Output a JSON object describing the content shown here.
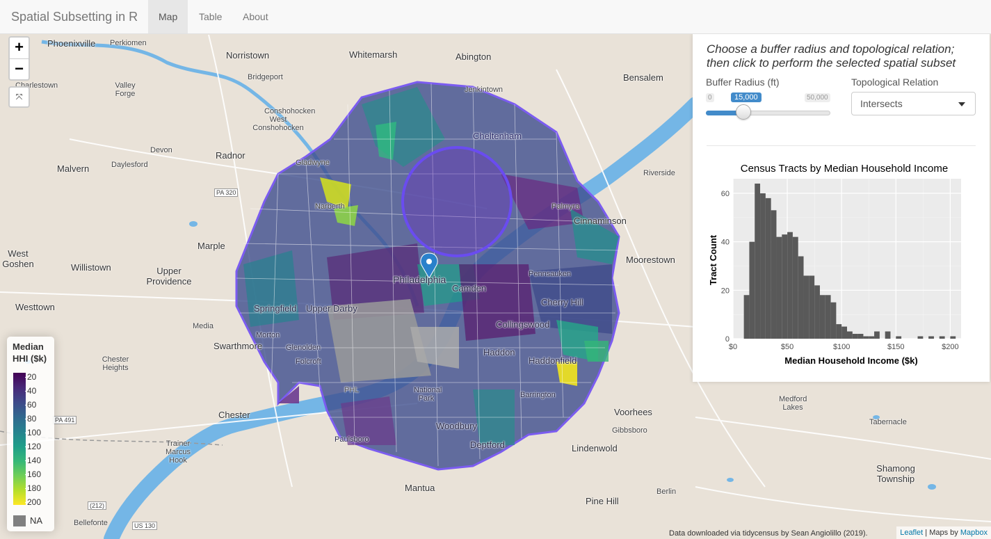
{
  "navbar": {
    "brand": "Spatial Subsetting in R",
    "tabs": [
      {
        "label": "Map",
        "active": true
      },
      {
        "label": "Table",
        "active": false
      },
      {
        "label": "About",
        "active": false
      }
    ]
  },
  "map": {
    "zoom_in": "+",
    "zoom_out": "−",
    "places": [
      {
        "name": "Phoenixville"
      },
      {
        "name": "Perkiomen"
      },
      {
        "name": "Norristown"
      },
      {
        "name": "Whitemarsh"
      },
      {
        "name": "Abington"
      },
      {
        "name": "Jenkintown"
      },
      {
        "name": "Bensalem"
      },
      {
        "name": "Charlestown"
      },
      {
        "name": "Valley Forge"
      },
      {
        "name": "Bridgeport"
      },
      {
        "name": "Conshohocken"
      },
      {
        "name": "West Conshohocken"
      },
      {
        "name": "Devon"
      },
      {
        "name": "Radnor"
      },
      {
        "name": "Gladwyne"
      },
      {
        "name": "Cheltenham"
      },
      {
        "name": "Malvern"
      },
      {
        "name": "Daylesford"
      },
      {
        "name": "PA 320"
      },
      {
        "name": "Riverside"
      },
      {
        "name": "Narberth"
      },
      {
        "name": "Palmyra"
      },
      {
        "name": "Cinnaminson"
      },
      {
        "name": "Marple"
      },
      {
        "name": "West Goshen"
      },
      {
        "name": "Willistown"
      },
      {
        "name": "Upper Providence"
      },
      {
        "name": "Moorestown"
      },
      {
        "name": "Philadelphia"
      },
      {
        "name": "Camden"
      },
      {
        "name": "Pennsauken"
      },
      {
        "name": "Westtown"
      },
      {
        "name": "Springfield"
      },
      {
        "name": "Upper Darby"
      },
      {
        "name": "Cherry Hill"
      },
      {
        "name": "Media"
      },
      {
        "name": "Collingswood"
      },
      {
        "name": "Swarthmore"
      },
      {
        "name": "Morton"
      },
      {
        "name": "Glenolden"
      },
      {
        "name": "Chester Heights"
      },
      {
        "name": "Folcroft"
      },
      {
        "name": "Haddon"
      },
      {
        "name": "Haddonfield"
      },
      {
        "name": "PHL"
      },
      {
        "name": "National Park"
      },
      {
        "name": "Barrington"
      },
      {
        "name": "Chester"
      },
      {
        "name": "PA 491"
      },
      {
        "name": "Voorhees"
      },
      {
        "name": "Medford Lakes"
      },
      {
        "name": "Tabernacle"
      },
      {
        "name": "Gibbsboro"
      },
      {
        "name": "Woodbury"
      },
      {
        "name": "Deptford"
      },
      {
        "name": "Paulsboro"
      },
      {
        "name": "Trainer Marcus Hook"
      },
      {
        "name": "Lindenwold"
      },
      {
        "name": "(212)"
      },
      {
        "name": "Mantua"
      },
      {
        "name": "Shamong Township"
      },
      {
        "name": "Pine Hill"
      },
      {
        "name": "Berlin"
      },
      {
        "name": "Bellefonte"
      },
      {
        "name": "US 130"
      }
    ]
  },
  "legend": {
    "title": "Median HHI ($k)",
    "ticks": [
      "20",
      "40",
      "60",
      "80",
      "100",
      "120",
      "140",
      "160",
      "180",
      "200"
    ],
    "na_label": "NA"
  },
  "panel": {
    "instructions": "Choose a buffer radius and topological relation; then click to perform the selected spatial subset",
    "buffer_label": "Buffer Radius (ft)",
    "slider_min": "0",
    "slider_max": "50,000",
    "slider_value": "15,000",
    "slider_fraction": 0.3,
    "relation_label": "Topological Relation",
    "relation_value": "Intersects"
  },
  "chart_data": {
    "type": "bar",
    "title": "Census Tracts by Median Household Income",
    "xlabel": "Median Household Income ($k)",
    "ylabel": "Tract Count",
    "xticks": [
      "$0",
      "$50",
      "$100",
      "$150",
      "$200"
    ],
    "yticks": [
      "0",
      "20",
      "40",
      "60"
    ],
    "xlim": [
      0,
      210
    ],
    "ylim": [
      0,
      66
    ],
    "bin_width": 5,
    "bin_starts": [
      10,
      15,
      20,
      25,
      30,
      35,
      40,
      45,
      50,
      55,
      60,
      65,
      70,
      75,
      80,
      85,
      90,
      95,
      100,
      105,
      110,
      115,
      120,
      125,
      130,
      135,
      140,
      145,
      150,
      155,
      160,
      165,
      170,
      175,
      180,
      185,
      190,
      195,
      200,
      205
    ],
    "values": [
      18,
      40,
      64,
      60,
      58,
      53,
      42,
      43,
      44,
      42,
      34,
      26,
      26,
      22,
      18,
      18,
      15,
      6,
      5,
      3,
      2,
      2,
      1,
      1,
      3,
      0,
      3,
      0,
      1,
      0,
      0,
      0,
      1,
      0,
      1,
      0,
      1,
      0,
      1,
      0
    ]
  },
  "attribution": {
    "data_source": "Data downloaded via tidycensus by Sean Angiolillo (2019).",
    "leaflet": "Leaflet",
    "maps_by": "| Maps by",
    "mapbox": "Mapbox"
  }
}
